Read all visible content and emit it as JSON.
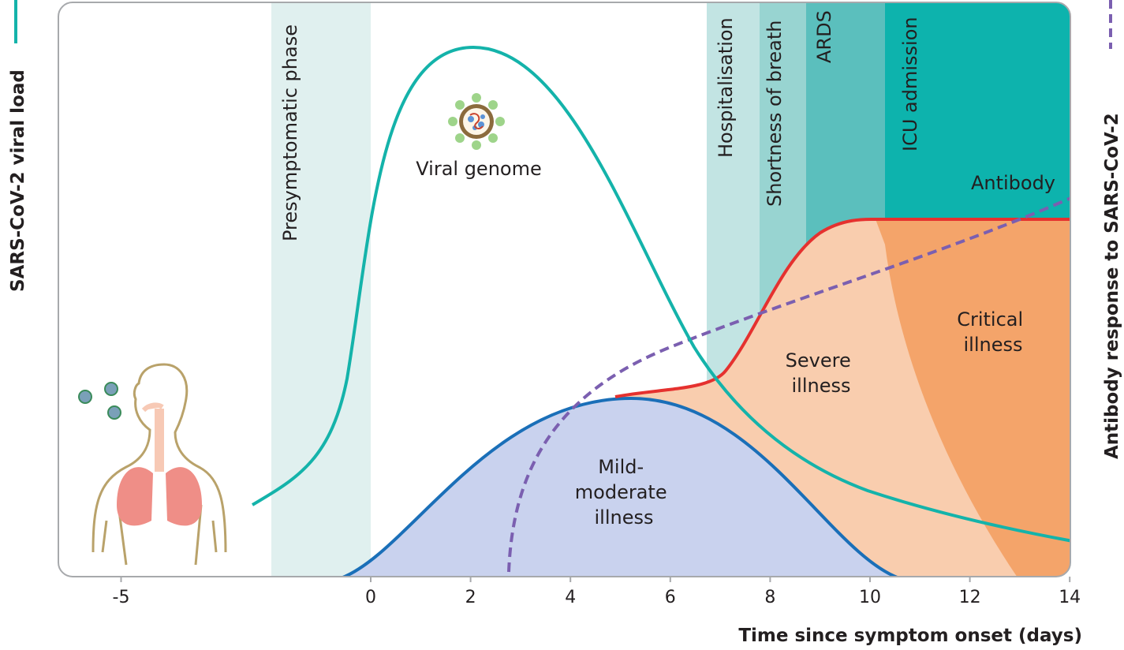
{
  "axis": {
    "x_title": "Time since symptom onset (days)",
    "x_ticks": [
      "-5",
      "0",
      "2",
      "4",
      "6",
      "8",
      "10",
      "12",
      "14"
    ],
    "left_title": "SARS-CoV-2 viral load",
    "right_title": "Antibody response to SARS-CoV-2"
  },
  "phases": {
    "presymptomatic": "Presymptomatic phase",
    "hospitalisation": "Hospitalisation",
    "shortness": "Shortness of breath",
    "ards": "ARDS",
    "icu": "ICU admission"
  },
  "labels": {
    "viral_genome": "Viral genome",
    "antibody": "Antibody",
    "mild_1": "Mild-",
    "mild_2": "moderate",
    "mild_3": "illness",
    "severe_1": "Severe",
    "severe_2": "illness",
    "critical_1": "Critical",
    "critical_2": "illness"
  },
  "colors": {
    "viral_load": "#14b3aa",
    "antibody": "#7b5fb0",
    "mild": "#c9d2ee",
    "mild_line": "#1a6fb8",
    "severe": "#f9cdae",
    "critical": "#f4a46a",
    "severity_line": "#e5312f",
    "presymptomatic": "#e0f0ef",
    "hospitalisation": "#c2e4e3",
    "shortness": "#98d4d1",
    "ards": "#5bbfbd",
    "icu": "#0db3ad"
  },
  "icons": [
    "virus-icon",
    "human-lungs-icon"
  ]
}
